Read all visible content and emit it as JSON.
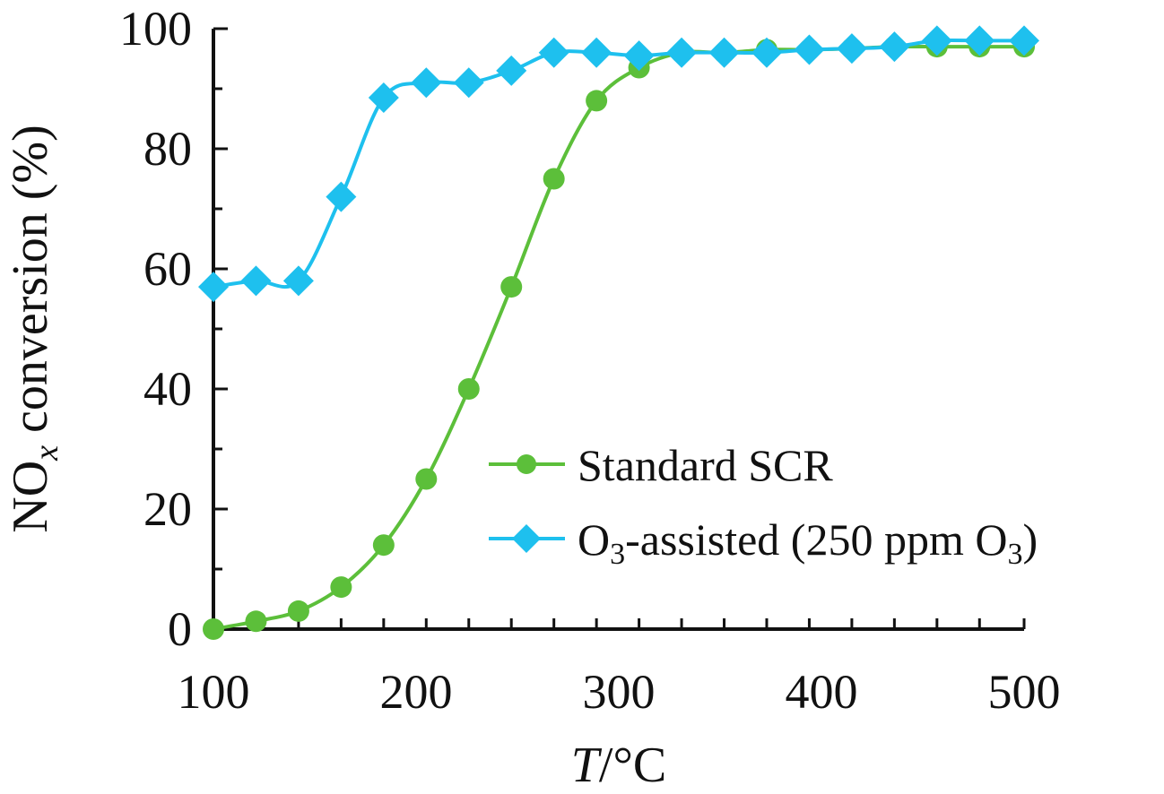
{
  "chart_data": {
    "type": "line",
    "xlabel": "T/°C",
    "xlabel_italic": "T",
    "xlabel_rest": "/°C",
    "ylabel_main": "NO",
    "ylabel_sub": "x",
    "ylabel_rest": " conversion (%)",
    "xlim": [
      100,
      500
    ],
    "ylim": [
      0,
      100
    ],
    "xticks": [
      100,
      200,
      300,
      400,
      500
    ],
    "yticks": [
      0,
      20,
      40,
      60,
      80,
      100
    ],
    "grid": false,
    "legend_placement": "bottom-right",
    "x": [
      100,
      121,
      142,
      163,
      184,
      205,
      226,
      247,
      268,
      289,
      310,
      331,
      352,
      373,
      394,
      415,
      436,
      457,
      478,
      500
    ],
    "series": [
      {
        "name": "Standard SCR",
        "color": "#5cbf3a",
        "marker": "circle",
        "values": [
          0,
          1.3,
          3,
          7,
          14,
          25,
          40,
          57,
          75,
          88,
          93.5,
          96,
          96,
          96.5,
          96.5,
          96.7,
          97,
          97,
          97,
          97
        ]
      },
      {
        "name": "O3-assisted (250 ppm O3)",
        "name_parts": [
          "O",
          "3",
          "-assisted (250 ppm O",
          "3",
          ")"
        ],
        "color": "#1ec0ee",
        "marker": "diamond",
        "values": [
          57,
          58,
          58,
          72,
          88.5,
          91,
          91,
          93,
          96,
          96,
          95.5,
          96,
          96,
          96,
          96.5,
          96.7,
          97,
          98,
          98,
          98
        ]
      }
    ]
  }
}
